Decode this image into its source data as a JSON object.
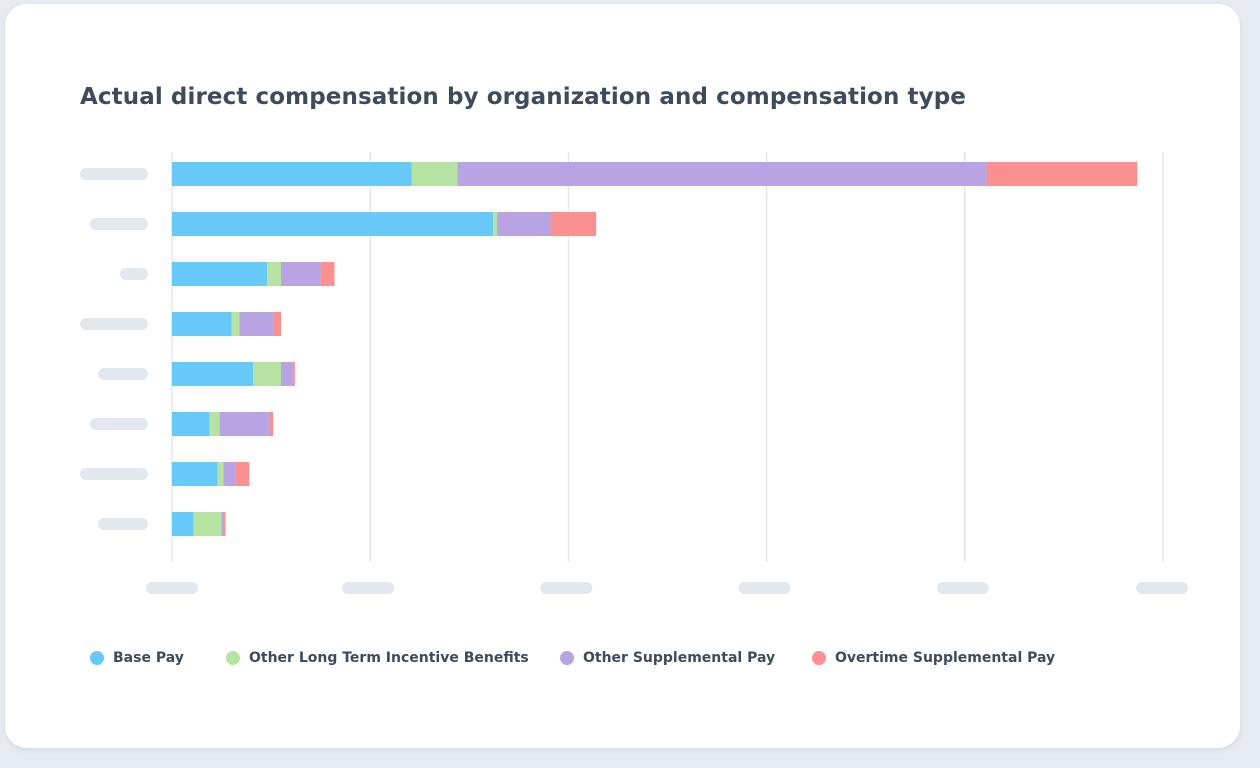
{
  "chart_data": {
    "type": "bar",
    "orientation": "horizontal",
    "stacked": true,
    "title": "Actual direct compensation by organization and compensation type",
    "categories": [
      "",
      "",
      "",
      "",
      "",
      "",
      "",
      ""
    ],
    "xlabel": "",
    "ylabel": "",
    "xlim": [
      0,
      5
    ],
    "grid": true,
    "legend_position": "bottom",
    "series": [
      {
        "name": "Base Pay",
        "color": "#66c9f8",
        "values": [
          1.21,
          1.62,
          0.48,
          0.3,
          0.41,
          0.19,
          0.23,
          0.11
        ]
      },
      {
        "name": "Other Long Term Incentive Benefits",
        "color": "#b6e3a2",
        "values": [
          0.23,
          0.02,
          0.07,
          0.04,
          0.14,
          0.05,
          0.03,
          0.14
        ]
      },
      {
        "name": "Other Supplemental Pay",
        "color": "#b8a4e2",
        "values": [
          2.67,
          0.27,
          0.2,
          0.17,
          0.06,
          0.25,
          0.06,
          0.01
        ]
      },
      {
        "name": "Overtime Supplemental Pay",
        "color": "#fb9090",
        "values": [
          0.76,
          0.23,
          0.07,
          0.04,
          0.01,
          0.02,
          0.07,
          0.01
        ]
      }
    ]
  },
  "styles": {
    "grid_color": "#e3e7ee",
    "placeholder_color": "#e3e8ef"
  }
}
